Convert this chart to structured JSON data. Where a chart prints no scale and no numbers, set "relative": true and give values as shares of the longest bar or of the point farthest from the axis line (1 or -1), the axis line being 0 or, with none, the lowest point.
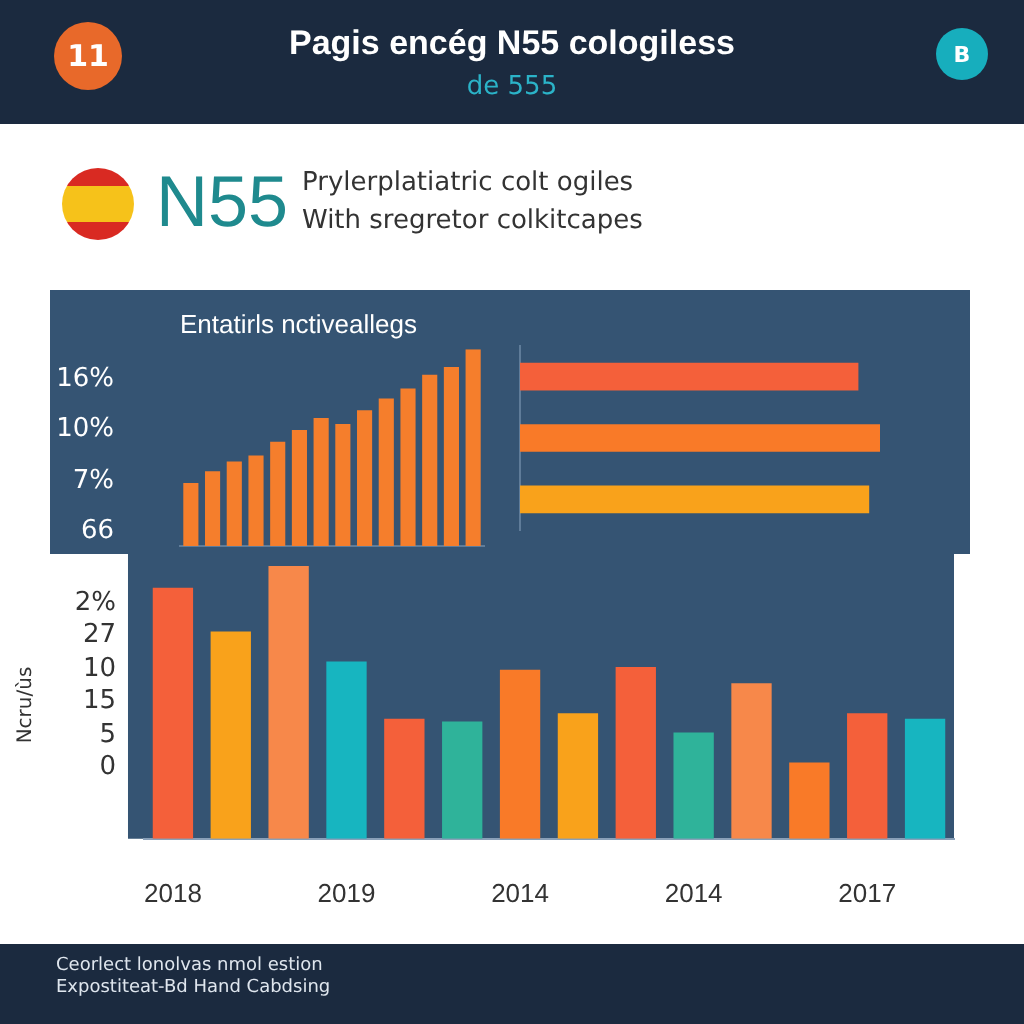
{
  "chart_data": [
    {
      "type": "other",
      "title": "Pagis encég N55 cologiless",
      "subtitle": "de 555",
      "annotations": [
        "11",
        "B",
        "N55",
        "Prylerplatiatric colt ogiles",
        "With sregretor colkitcapes"
      ]
    },
    {
      "type": "bar",
      "title": "Entatirls nctiveallegs",
      "relative": true,
      "categories": [
        null,
        null,
        null,
        null,
        null,
        null,
        null,
        null,
        null,
        null,
        null,
        null,
        null,
        null
      ],
      "values": [
        0.32,
        0.38,
        0.43,
        0.46,
        0.53,
        0.59,
        0.65,
        0.62,
        0.69,
        0.75,
        0.8,
        0.87,
        0.91,
        1
      ],
      "color": "#f57e2c",
      "annotations": [
        "16%",
        "10%",
        "7%",
        "66"
      ]
    },
    {
      "type": "bar",
      "orientation": "horizontal",
      "relative": true,
      "categories": [
        null,
        null,
        null
      ],
      "values": [
        0.94,
        1,
        0.97
      ],
      "colors": [
        "#f4603a",
        "#f97a28",
        "#f9a21b"
      ]
    },
    {
      "type": "bar",
      "relative": true,
      "ylabel": "Ncru/ùs",
      "categories": [
        "2018",
        null,
        null,
        "2019",
        null,
        null,
        "2014",
        null,
        null,
        "2014",
        null,
        null,
        "2017",
        null
      ],
      "values": [
        0.92,
        0.76,
        1,
        0.65,
        0.44,
        0.43,
        0.62,
        0.46,
        0.63,
        0.39,
        0.57,
        0.28,
        0.46,
        0.44
      ],
      "colors": [
        "#f4603a",
        "#f9a21b",
        "#f7884a",
        "#17b5c0",
        "#f4603a",
        "#2fb39a",
        "#f97a28",
        "#f9a21b",
        "#f4603a",
        "#2fb39a",
        "#f7884a",
        "#f97a28",
        "#f4603a",
        "#17b5c0"
      ],
      "annotations": [
        "2%",
        "27",
        "10",
        "15",
        "5",
        "0"
      ]
    },
    {
      "type": "other",
      "annotations": [
        "Ceorlect lonolvas nmol estion",
        "Expostiteat-Bd Hand Cabdsing"
      ]
    }
  ]
}
